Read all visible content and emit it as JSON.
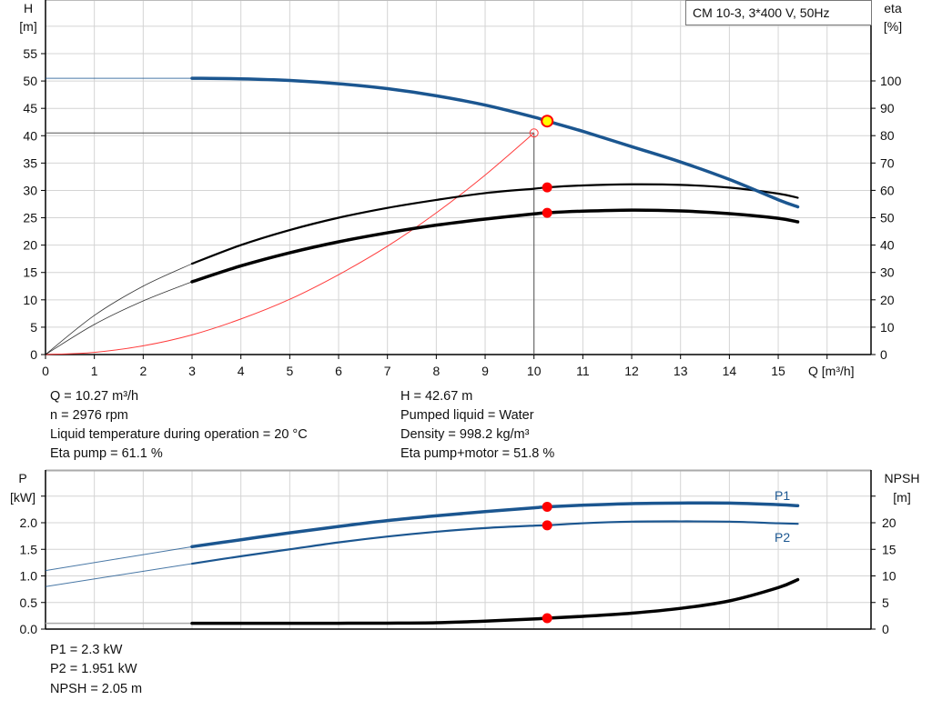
{
  "legend_box": "CM 10-3, 3*400 V, 50Hz",
  "colors": {
    "pump_curve": "#1b5690",
    "efficiency": "#000000",
    "system_curve": "#ff3b3b",
    "duty_point": "#ffff00",
    "markers": "#ff0000",
    "grid": "#d4d4d4"
  },
  "info_top": {
    "left": [
      "Q = 10.27 m³/h",
      "n = 2976 rpm",
      "Liquid temperature during operation = 20 °C",
      "Eta pump = 61.1 %"
    ],
    "right": [
      "H = 42.67 m",
      "Pumped liquid = Water",
      "Density = 998.2 kg/m³",
      "Eta pump+motor = 51.8 %"
    ]
  },
  "info_bottom": [
    "P1 = 2.3 kW",
    "P2 = 1.951 kW",
    "NPSH = 2.05 m"
  ],
  "chart_data": [
    {
      "type": "line",
      "xlabel": "Q [m³/h]",
      "ylabel": "H",
      "ylabel_unit": "[m]",
      "y2label": "eta",
      "y2label_unit": "[%]",
      "xlim": [
        0,
        16
      ],
      "ylim": [
        0,
        60
      ],
      "y2lim": [
        0,
        120
      ],
      "xticks": [
        "0",
        "1",
        "2",
        "3",
        "4",
        "5",
        "6",
        "7",
        "8",
        "9",
        "10",
        "11",
        "12",
        "13",
        "14",
        "15"
      ],
      "yticks": [
        "0",
        "5",
        "10",
        "15",
        "20",
        "25",
        "30",
        "35",
        "40",
        "45",
        "50",
        "55"
      ],
      "y2ticks": [
        "0",
        "10",
        "20",
        "30",
        "40",
        "50",
        "60",
        "70",
        "80",
        "90",
        "100"
      ],
      "grid": true,
      "series": [
        {
          "key": "head",
          "axis": "left",
          "x": [
            0,
            3,
            4,
            5,
            6,
            7,
            8,
            9,
            10,
            10.27,
            11,
            12,
            13,
            14,
            15,
            15.4
          ],
          "y": [
            50.5,
            50.5,
            50.4,
            50.1,
            49.5,
            48.6,
            47.3,
            45.6,
            43.4,
            42.67,
            40.8,
            38.0,
            35.2,
            32.0,
            28.3,
            27.0
          ],
          "thin_until": 3
        },
        {
          "key": "eta_pump",
          "axis": "right",
          "x": [
            0,
            1,
            2,
            3,
            4,
            5,
            6,
            7,
            8,
            9,
            10,
            10.27,
            11,
            12,
            13,
            14,
            15,
            15.4
          ],
          "y": [
            0,
            14.3,
            25,
            33.2,
            40,
            45.5,
            50,
            53.6,
            56.5,
            59,
            60.6,
            61.1,
            61.8,
            62.2,
            62,
            61,
            58.8,
            57.3
          ],
          "thin_until": 3
        },
        {
          "key": "eta_pump_motor",
          "axis": "right",
          "x": [
            0,
            1,
            2,
            3,
            4,
            5,
            6,
            7,
            8,
            9,
            10,
            10.27,
            11,
            12,
            13,
            14,
            15,
            15.4
          ],
          "y": [
            0,
            11,
            19.6,
            26.6,
            32.4,
            37.2,
            41.2,
            44.5,
            47.3,
            49.5,
            51.4,
            51.8,
            52.4,
            52.8,
            52.5,
            51.5,
            49.8,
            48.5
          ],
          "thin_until": 3
        },
        {
          "key": "system_curve",
          "axis": "left",
          "x": [
            0,
            1,
            2,
            3,
            4,
            5,
            6,
            7,
            8,
            9,
            10
          ],
          "y": [
            0,
            0.4,
            1.6,
            3.6,
            6.5,
            10.1,
            14.6,
            19.8,
            25.9,
            32.8,
            40.5
          ]
        }
      ],
      "duty_point": {
        "Q": 10.27,
        "H": 42.67
      },
      "system_point": {
        "Q": 10.0,
        "H": 40.5
      },
      "markers": [
        {
          "Q": 10.27,
          "eta": 61.1
        },
        {
          "Q": 10.27,
          "eta": 51.8
        }
      ]
    },
    {
      "type": "line",
      "ylabel": "P",
      "ylabel_unit": "[kW]",
      "y2label": "NPSH",
      "y2label_unit": "[m]",
      "xlim": [
        0,
        16
      ],
      "ylim": [
        0,
        2.5
      ],
      "y2lim": [
        0,
        25
      ],
      "yticks": [
        "0.0",
        "0.5",
        "1.0",
        "1.5",
        "2.0"
      ],
      "y2ticks": [
        "0",
        "5",
        "10",
        "15",
        "20"
      ],
      "grid": true,
      "series": [
        {
          "key": "p1",
          "name": "P1",
          "axis": "left",
          "x": [
            0,
            3,
            4,
            5,
            6,
            7,
            8,
            9,
            10,
            10.27,
            11,
            12,
            13,
            14,
            15,
            15.4
          ],
          "y": [
            1.1,
            1.55,
            1.68,
            1.81,
            1.93,
            2.04,
            2.13,
            2.21,
            2.28,
            2.3,
            2.33,
            2.36,
            2.37,
            2.37,
            2.34,
            2.32
          ],
          "thin_until": 3
        },
        {
          "key": "p2",
          "name": "P2",
          "axis": "left",
          "x": [
            0,
            3,
            4,
            5,
            6,
            7,
            8,
            9,
            10,
            10.27,
            11,
            12,
            13,
            14,
            15,
            15.4
          ],
          "y": [
            0.8,
            1.23,
            1.37,
            1.5,
            1.63,
            1.74,
            1.83,
            1.9,
            1.945,
            1.951,
            1.99,
            2.02,
            2.025,
            2.02,
            1.99,
            1.98
          ],
          "thin_until": 3
        },
        {
          "key": "npsh",
          "axis": "right",
          "x": [
            0,
            3,
            4,
            5,
            6,
            7,
            8,
            9,
            10,
            10.27,
            11,
            12,
            13,
            14,
            15,
            15.4
          ],
          "y": [
            1.1,
            1.1,
            1.1,
            1.1,
            1.1,
            1.12,
            1.2,
            1.5,
            1.9,
            2.05,
            2.4,
            3.0,
            3.9,
            5.3,
            7.8,
            9.3
          ],
          "thin_until": 3
        }
      ],
      "markers": [
        {
          "Q": 10.27,
          "P": 2.3
        },
        {
          "Q": 10.27,
          "P": 1.951
        },
        {
          "Q": 10.27,
          "NPSH": 2.05
        }
      ]
    }
  ]
}
